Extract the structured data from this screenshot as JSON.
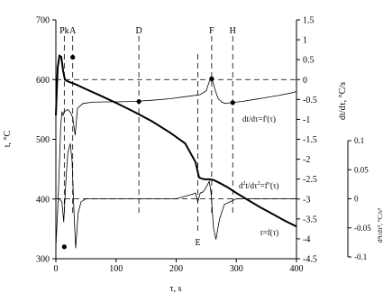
{
  "chart_data": {
    "type": "line",
    "x_axis": {
      "label": "τ, s",
      "range": [
        0,
        400
      ],
      "ticks": [
        "0",
        "100",
        "200",
        "300",
        "400"
      ]
    },
    "y_left": {
      "label": "t, °C",
      "range": [
        300,
        700
      ],
      "ticks": [
        "300",
        "400",
        "500",
        "600",
        "700"
      ]
    },
    "y_right1": {
      "label": "dt/dτ, °C/s",
      "range": [
        -4.5,
        1.5
      ],
      "ticks": [
        "-4.5",
        "-4",
        "-3.5",
        "-3",
        "-2.5",
        "-2",
        "-1.5",
        "-1",
        "-0.5",
        "0",
        "0.5",
        "1",
        "1.5"
      ]
    },
    "y_right2": {
      "label": "d²t/dτ², °C/s²",
      "range": [
        -0.1,
        0.1
      ],
      "ticks": [
        "-0.1",
        "-0.05",
        "0",
        "0.05",
        "0.1"
      ]
    },
    "markers": [
      {
        "label": "Pk",
        "x": 14,
        "pos": "top"
      },
      {
        "label": "A",
        "x": 28,
        "pos": "top"
      },
      {
        "label": "D",
        "x": 138,
        "pos": "top"
      },
      {
        "label": "F",
        "x": 259,
        "pos": "top"
      },
      {
        "label": "H",
        "x": 294,
        "pos": "top"
      },
      {
        "label": "E",
        "x": 236,
        "pos": "bottom"
      }
    ],
    "series": [
      {
        "name": "t=f(τ)",
        "axis": "left",
        "x": [
          0,
          3,
          6,
          9,
          12,
          15,
          18,
          22,
          28,
          35,
          50,
          70,
          100,
          130,
          160,
          190,
          215,
          232,
          238,
          243,
          248,
          255,
          262,
          270,
          285,
          300,
          320,
          340,
          360,
          380,
          400
        ],
        "y": [
          540,
          620,
          640,
          638,
          615,
          600,
          598,
          596,
          594,
          591,
          584,
          575,
          561,
          546,
          530,
          511,
          493,
          462,
          436,
          434,
          433,
          433,
          432,
          428,
          420,
          410,
          398,
          386,
          375,
          364,
          354
        ]
      },
      {
        "name": "dt/dτ=f'(τ)",
        "axis": "right1",
        "x": [
          0,
          3,
          6,
          8,
          10,
          12,
          14,
          17,
          20,
          24,
          28,
          32,
          36,
          45,
          60,
          80,
          100,
          130,
          160,
          190,
          220,
          240,
          250,
          255,
          258,
          261,
          265,
          270,
          276,
          282,
          290,
          310,
          330,
          350,
          370,
          390,
          400
        ],
        "y": [
          -4.2,
          -3.3,
          -2.1,
          -1.2,
          -0.8,
          -0.9,
          -0.8,
          -0.78,
          -0.75,
          -0.82,
          -0.95,
          -1.4,
          -0.72,
          -0.6,
          -0.57,
          -0.56,
          -0.56,
          -0.55,
          -0.52,
          -0.48,
          -0.42,
          -0.38,
          -0.28,
          -0.05,
          0.02,
          -0.05,
          -0.28,
          -0.48,
          -0.57,
          -0.6,
          -0.58,
          -0.55,
          -0.5,
          -0.45,
          -0.4,
          -0.34,
          -0.3
        ]
      },
      {
        "name": "d²t/dτ²=f''(τ)",
        "axis": "right2",
        "x": [
          0,
          5,
          10,
          13,
          17,
          20,
          24,
          27,
          30,
          33,
          37,
          42,
          50,
          80,
          120,
          160,
          200,
          228,
          232,
          236,
          240,
          245,
          250,
          255,
          258,
          262,
          266,
          272,
          280,
          300,
          340,
          400
        ],
        "y": [
          0.0,
          0.0,
          -0.005,
          -0.04,
          0.035,
          0.08,
          0.095,
          0.065,
          -0.02,
          -0.085,
          -0.025,
          -0.005,
          0.0,
          0.0,
          0.0,
          0.0,
          0.0,
          0.008,
          0.01,
          -0.005,
          0.01,
          0.012,
          0.02,
          0.03,
          0.01,
          -0.05,
          -0.07,
          -0.035,
          -0.01,
          0.0,
          0.0,
          0.0
        ]
      }
    ],
    "points": [
      {
        "axis": "right1",
        "x": 14,
        "y": -4.2
      },
      {
        "axis": "right1",
        "x": 28,
        "y": 0.56
      },
      {
        "axis": "right1",
        "x": 138,
        "y": -0.55
      },
      {
        "axis": "right1",
        "x": 259,
        "y": 0.02
      },
      {
        "axis": "right1",
        "x": 294,
        "y": -0.58
      }
    ],
    "zero_lines": [
      {
        "axis": "right1",
        "y": 0
      },
      {
        "axis": "right2",
        "y": 0
      }
    ],
    "grid": false,
    "annotations": {
      "deriv1": "dt/dτ=f'(τ)",
      "deriv2_prefix": "d",
      "deriv2_sup": "2",
      "deriv2_suffix": "t/dτ",
      "deriv2_sup2": "2",
      "deriv2_rest": "=f''(τ)",
      "temp": "t=f(τ)"
    }
  }
}
